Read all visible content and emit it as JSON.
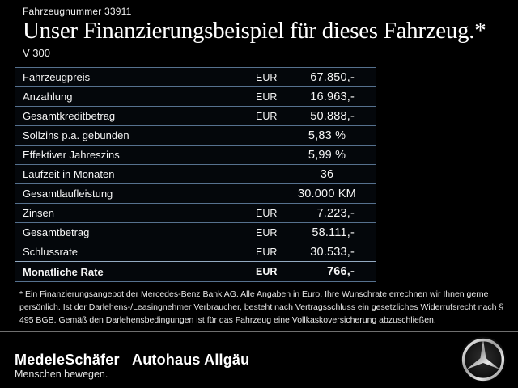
{
  "header": {
    "vehicle_number": "Fahrzeugnummer 33911",
    "title": "Unser Finanzierungsbeispiel für dieses Fahrzeug.*",
    "model": "V 300"
  },
  "table": {
    "rows": [
      {
        "label": "Fahrzeugpreis",
        "currency": "EUR",
        "value": "67.850,-",
        "bold": false
      },
      {
        "label": "Anzahlung",
        "currency": "EUR",
        "value": "16.963,-",
        "bold": false
      },
      {
        "label": "Gesamtkreditbetrag",
        "currency": "EUR",
        "value": "50.888,-",
        "bold": false
      },
      {
        "label": "Sollzins p.a. gebunden",
        "currency": "",
        "value": "5,83 %",
        "bold": false
      },
      {
        "label": "Effektiver Jahreszins",
        "currency": "",
        "value": "5,99 %",
        "bold": false
      },
      {
        "label": "Laufzeit in Monaten",
        "currency": "",
        "value": "36",
        "bold": false
      },
      {
        "label": "Gesamtlaufleistung",
        "currency": "",
        "value": "30.000 KM",
        "bold": false
      },
      {
        "label": "Zinsen",
        "currency": "EUR",
        "value": "7.223,-",
        "bold": false
      },
      {
        "label": "Gesamtbetrag",
        "currency": "EUR",
        "value": "58.111,-",
        "bold": false
      },
      {
        "label": "Schlussrate",
        "currency": "EUR",
        "value": "30.533,-",
        "bold": false
      },
      {
        "label": "Monatliche Rate",
        "currency": "EUR",
        "value": "766,-",
        "bold": true
      }
    ]
  },
  "footnote": "* Ein Finanzierungsangebot der Mercedes-Benz Bank AG. Alle Angaben in Euro, Ihre Wunschrate errechnen wir Ihnen gerne persönlich. Ist der Darlehens-/Leasingnehmer Verbraucher, besteht nach Vertragsschluss ein gesetzliches Widerrufsrecht nach § 495 BGB. Gemäß den Darlehensbedingungen ist für das Fahrzeug eine Vollkaskoversicherung abzuschließen.",
  "footer": {
    "dealer_name": "MedeleSchäfer",
    "dealer_name2": "Autohaus Allgäu",
    "tagline": "Menschen bewegen.",
    "brand_logo": "mercedes-benz-star"
  },
  "colors": {
    "background": "#000000",
    "table_separator": "#56718e",
    "highlight_separator": "#93aac2",
    "footer_divider": "#6f6f6f",
    "text": "#ffffff",
    "logo_silver": "#d9d9d9"
  }
}
